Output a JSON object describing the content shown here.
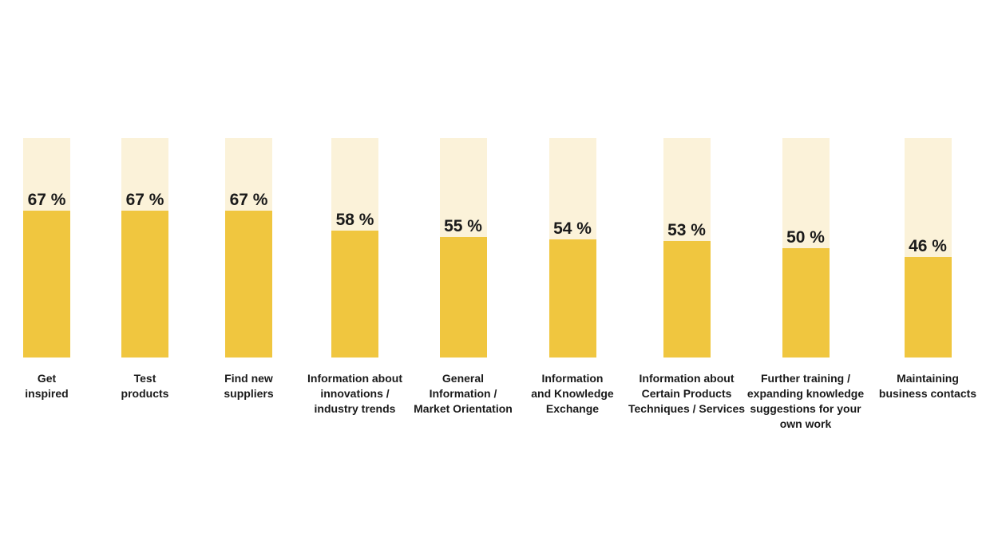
{
  "page": {
    "background_color": "#ffffff"
  },
  "chart_data": {
    "type": "bar",
    "title": "",
    "xlabel": "",
    "ylabel": "",
    "unit": "%",
    "ylim": [
      0,
      100
    ],
    "grid": false,
    "legend": false,
    "orientation": "vertical",
    "track_represents_percent": 100,
    "colors": {
      "bar_track": "#FBF2D9",
      "bar_fill": "#F0C63F",
      "value_text": "#1a1a1a",
      "category_text": "#1a1a1a"
    },
    "categories": [
      "Get inspired",
      "Test products",
      "Find new suppliers",
      "Information about innovations / industry trends",
      "General Information / Market Orientation",
      "Information and Knowledge Exchange",
      "Information about Certain Products Techniques / Services",
      "Further training / expanding knowledge suggestions for your own work",
      "Maintaining business contacts"
    ],
    "values": [
      67,
      67,
      67,
      58,
      55,
      54,
      53,
      50,
      46
    ],
    "items": [
      {
        "category": "Get\ninspired",
        "value": 67,
        "value_label": "67 %"
      },
      {
        "category": "Test\nproducts",
        "value": 67,
        "value_label": "67 %"
      },
      {
        "category": "Find new\nsuppliers",
        "value": 67,
        "value_label": "67 %"
      },
      {
        "category": "Information about\ninnovations /\nindustry trends",
        "value": 58,
        "value_label": "58 %"
      },
      {
        "category": "General\nInformation /\nMarket Orientation",
        "value": 55,
        "value_label": "55 %"
      },
      {
        "category": "Information\nand Knowledge\nExchange",
        "value": 54,
        "value_label": "54 %"
      },
      {
        "category": "Information about\nCertain Products\nTechniques / Services",
        "value": 53,
        "value_label": "53 %"
      },
      {
        "category": "Further training /\nexpanding knowledge\nsuggestions for your\nown work",
        "value": 50,
        "value_label": "50 %"
      },
      {
        "category": "Maintaining\nbusiness contacts",
        "value": 46,
        "value_label": "46 %"
      }
    ]
  }
}
